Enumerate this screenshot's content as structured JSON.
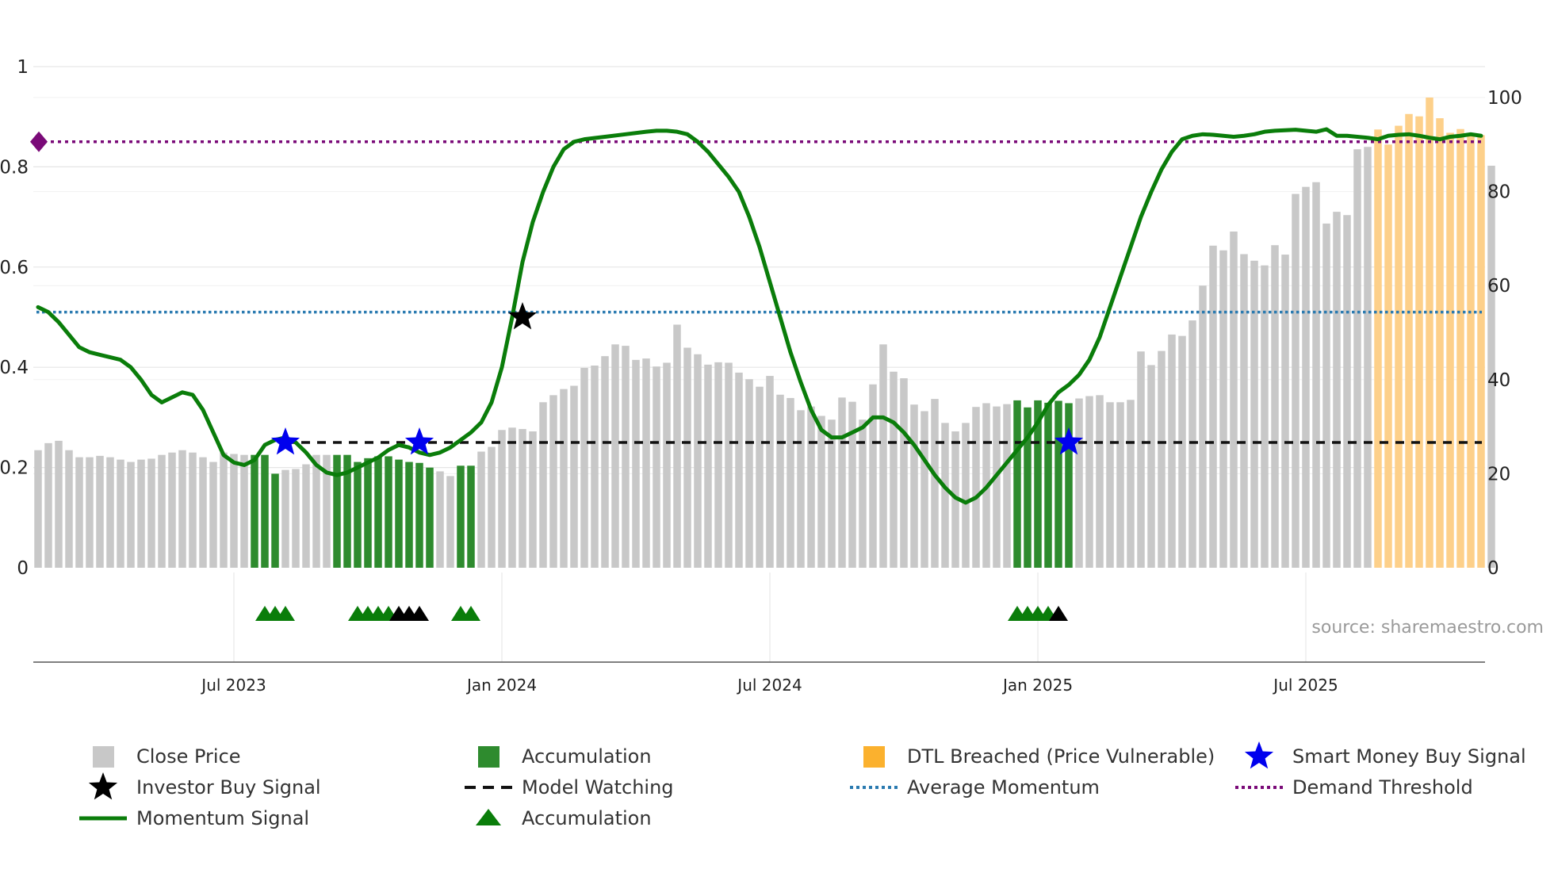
{
  "chart_data": {
    "type": "bar",
    "title": "",
    "source": "source: sharemaestro.com",
    "x_axis": {
      "ticks": [
        {
          "label": "Jul 2023",
          "index": 19
        },
        {
          "label": "Jan 2024",
          "index": 45
        },
        {
          "label": "Jul 2024",
          "index": 71
        },
        {
          "label": "Jan 2025",
          "index": 97
        },
        {
          "label": "Jul 2025",
          "index": 123
        }
      ],
      "n_points": 141
    },
    "y_left": {
      "range": [
        0,
        1
      ],
      "ticks": [
        {
          "value": 0,
          "label": "0"
        },
        {
          "value": 0.2,
          "label": "0.2"
        },
        {
          "value": 0.4,
          "label": "0.4"
        },
        {
          "value": 0.6,
          "label": "0.6"
        },
        {
          "value": 0.8,
          "label": "0.8"
        },
        {
          "value": 1,
          "label": "1"
        }
      ]
    },
    "y_right": {
      "range": [
        0,
        100
      ],
      "ticks": [
        {
          "value": 0,
          "label": "0"
        },
        {
          "value": 20,
          "label": "20"
        },
        {
          "value": 40,
          "label": "40"
        },
        {
          "value": 60,
          "label": "60"
        },
        {
          "value": 80,
          "label": "80"
        },
        {
          "value": 100,
          "label": "100"
        }
      ]
    },
    "close_price": [
      25,
      26.5,
      27,
      25,
      23.5,
      23.5,
      23.8,
      23.5,
      23,
      22.5,
      23,
      23.2,
      24,
      24.5,
      25,
      24.5,
      23.5,
      22.5,
      24.5,
      24.2,
      24,
      24,
      24,
      20,
      20.8,
      21,
      22,
      24,
      24,
      24,
      24,
      22.5,
      23.3,
      23.7,
      23.7,
      23,
      22.5,
      22.3,
      21.3,
      20.5,
      19.5,
      21.7,
      21.7,
      24.7,
      25.7,
      29.3,
      29.8,
      29.5,
      29,
      35.2,
      36.7,
      38,
      38.7,
      42.5,
      43,
      45,
      47.5,
      47.2,
      44.2,
      44.5,
      42.8,
      43.6,
      51.7,
      46.8,
      45.4,
      43.2,
      43.7,
      43.6,
      41.5,
      40.1,
      38.5,
      40.8,
      36.8,
      36.1,
      33.5,
      34.3,
      32.3,
      31.5,
      36.2,
      35.3,
      31.5,
      39,
      47.5,
      41.7,
      40.3,
      34.7,
      33.3,
      35.9,
      30.8,
      29,
      30.8,
      34.2,
      35,
      34.3,
      34.8,
      35.6,
      34.1,
      35.6,
      35.1,
      35.5,
      35,
      36,
      36.5,
      36.7,
      35.2,
      35.2,
      35.7,
      46,
      43.1,
      46.1,
      49.6,
      49.3,
      52.6,
      60,
      68.5,
      67.5,
      71.5,
      66.7,
      65.3,
      64.3,
      68.6,
      66.6,
      79.5,
      81,
      82,
      73.2,
      75.7,
      75,
      89,
      89.5,
      93.2,
      90,
      94,
      96.5,
      96,
      100,
      95.6,
      92.5,
      93.3,
      92.5,
      92,
      85.5
    ],
    "accumulation_bars": [
      21,
      22,
      23,
      29,
      30,
      31,
      32,
      33,
      34,
      35,
      36,
      37,
      38,
      41,
      42,
      95,
      96,
      97,
      98,
      99,
      100
    ],
    "dtl_breached_bars": [
      130,
      131,
      132,
      133,
      134,
      135,
      136,
      137,
      138,
      139,
      140
    ],
    "momentum_signal": {
      "points": [
        [
          0,
          0.52
        ],
        [
          1,
          0.51
        ],
        [
          2,
          0.49
        ],
        [
          4,
          0.44
        ],
        [
          5,
          0.43
        ],
        [
          6,
          0.425
        ],
        [
          7,
          0.42
        ],
        [
          8,
          0.415
        ],
        [
          9,
          0.4
        ],
        [
          10,
          0.375
        ],
        [
          11,
          0.345
        ],
        [
          12,
          0.33
        ],
        [
          13,
          0.34
        ],
        [
          14,
          0.35
        ],
        [
          15,
          0.345
        ],
        [
          16,
          0.315
        ],
        [
          17,
          0.27
        ],
        [
          18,
          0.225
        ],
        [
          19,
          0.21
        ],
        [
          20,
          0.205
        ],
        [
          21,
          0.215
        ],
        [
          22,
          0.245
        ],
        [
          23,
          0.255
        ],
        [
          24,
          0.26
        ],
        [
          25,
          0.25
        ],
        [
          26,
          0.23
        ],
        [
          27,
          0.205
        ],
        [
          28,
          0.19
        ],
        [
          29,
          0.185
        ],
        [
          30,
          0.19
        ],
        [
          31,
          0.2
        ],
        [
          32,
          0.21
        ],
        [
          33,
          0.22
        ],
        [
          34,
          0.235
        ],
        [
          35,
          0.245
        ],
        [
          36,
          0.24
        ],
        [
          37,
          0.23
        ],
        [
          38,
          0.225
        ],
        [
          39,
          0.23
        ],
        [
          40,
          0.24
        ],
        [
          41,
          0.255
        ],
        [
          42,
          0.27
        ],
        [
          43,
          0.29
        ],
        [
          44,
          0.33
        ],
        [
          45,
          0.4
        ],
        [
          46,
          0.5
        ],
        [
          47,
          0.61
        ],
        [
          48,
          0.69
        ],
        [
          49,
          0.75
        ],
        [
          50,
          0.8
        ],
        [
          51,
          0.835
        ],
        [
          52,
          0.85
        ],
        [
          53,
          0.855
        ],
        [
          55,
          0.86
        ],
        [
          57,
          0.865
        ],
        [
          59,
          0.87
        ],
        [
          60,
          0.872
        ],
        [
          61,
          0.872
        ],
        [
          62,
          0.87
        ],
        [
          63,
          0.865
        ],
        [
          64,
          0.85
        ],
        [
          65,
          0.83
        ],
        [
          66,
          0.805
        ],
        [
          67,
          0.78
        ],
        [
          68,
          0.75
        ],
        [
          69,
          0.7
        ],
        [
          70,
          0.64
        ],
        [
          71,
          0.57
        ],
        [
          72,
          0.5
        ],
        [
          73,
          0.43
        ],
        [
          74,
          0.37
        ],
        [
          75,
          0.315
        ],
        [
          76,
          0.275
        ],
        [
          77,
          0.26
        ],
        [
          78,
          0.26
        ],
        [
          79,
          0.27
        ],
        [
          80,
          0.28
        ],
        [
          81,
          0.3
        ],
        [
          82,
          0.3
        ],
        [
          83,
          0.29
        ],
        [
          84,
          0.27
        ],
        [
          85,
          0.245
        ],
        [
          86,
          0.215
        ],
        [
          87,
          0.185
        ],
        [
          88,
          0.16
        ],
        [
          89,
          0.14
        ],
        [
          90,
          0.13
        ],
        [
          91,
          0.14
        ],
        [
          92,
          0.16
        ],
        [
          93,
          0.185
        ],
        [
          94,
          0.21
        ],
        [
          95,
          0.235
        ],
        [
          96,
          0.26
        ],
        [
          97,
          0.29
        ],
        [
          98,
          0.325
        ],
        [
          99,
          0.35
        ],
        [
          100,
          0.365
        ],
        [
          101,
          0.385
        ],
        [
          102,
          0.415
        ],
        [
          103,
          0.46
        ],
        [
          104,
          0.52
        ],
        [
          105,
          0.58
        ],
        [
          106,
          0.64
        ],
        [
          107,
          0.7
        ],
        [
          108,
          0.75
        ],
        [
          109,
          0.795
        ],
        [
          110,
          0.83
        ],
        [
          111,
          0.855
        ],
        [
          112,
          0.862
        ],
        [
          113,
          0.865
        ],
        [
          114,
          0.864
        ],
        [
          115,
          0.862
        ],
        [
          116,
          0.86
        ],
        [
          117,
          0.862
        ],
        [
          118,
          0.865
        ],
        [
          119,
          0.87
        ],
        [
          120,
          0.872
        ],
        [
          121,
          0.873
        ],
        [
          122,
          0.874
        ],
        [
          123,
          0.872
        ],
        [
          124,
          0.87
        ],
        [
          125,
          0.875
        ],
        [
          126,
          0.862
        ],
        [
          127,
          0.862
        ],
        [
          128,
          0.86
        ],
        [
          129,
          0.858
        ],
        [
          130,
          0.855
        ],
        [
          131,
          0.862
        ],
        [
          132,
          0.864
        ],
        [
          133,
          0.865
        ],
        [
          134,
          0.862
        ],
        [
          135,
          0.858
        ],
        [
          136,
          0.855
        ],
        [
          137,
          0.86
        ],
        [
          138,
          0.862
        ],
        [
          139,
          0.865
        ],
        [
          140,
          0.862
        ]
      ]
    },
    "model_watching": {
      "value": 0.25,
      "start_index": 24
    },
    "average_momentum": 0.51,
    "demand_threshold": 0.85,
    "smart_money_buy_signals": [
      {
        "index": 24,
        "value": 0.25
      },
      {
        "index": 37,
        "value": 0.25
      },
      {
        "index": 100,
        "value": 0.25
      }
    ],
    "investor_buy_signals": [
      {
        "index": 47,
        "value": 0.5
      }
    ],
    "accumulation_markers": {
      "green": [
        22,
        23,
        24,
        31,
        32,
        33,
        34,
        41,
        42,
        95,
        96,
        97,
        98
      ],
      "black": [
        35,
        36,
        37,
        99
      ]
    },
    "legend": [
      {
        "key": "close",
        "label": "Close Price",
        "icon": "grey-square"
      },
      {
        "key": "accum_bar",
        "label": "Accumulation",
        "icon": "green-square"
      },
      {
        "key": "dtl",
        "label": "DTL Breached (Price Vulnerable)",
        "icon": "orange-square"
      },
      {
        "key": "smart",
        "label": "Smart Money Buy Signal",
        "icon": "blue-star"
      },
      {
        "key": "investor",
        "label": "Investor Buy Signal",
        "icon": "black-star"
      },
      {
        "key": "model",
        "label": "Model Watching",
        "icon": "black-dashed-line"
      },
      {
        "key": "avg",
        "label": "Average Momentum",
        "icon": "blue-dotted-line"
      },
      {
        "key": "demand",
        "label": "Demand Threshold",
        "icon": "purple-dotted-line"
      },
      {
        "key": "momentum",
        "label": "Momentum Signal",
        "icon": "green-line"
      },
      {
        "key": "accum_marker",
        "label": "Accumulation",
        "icon": "green-triangle"
      }
    ],
    "colors": {
      "close": "#c8c8c8",
      "accum": "#2e8b2e",
      "dtl": "#fdd08a",
      "momentum": "#0a7d0a",
      "model": "#111111",
      "avg": "#2a7ab0",
      "demand": "#7a0a78",
      "smart": "#0000ee",
      "investor": "#000000",
      "grid": "#e6e6e6",
      "axis": "#444444",
      "source": "#9a9a9a"
    }
  }
}
